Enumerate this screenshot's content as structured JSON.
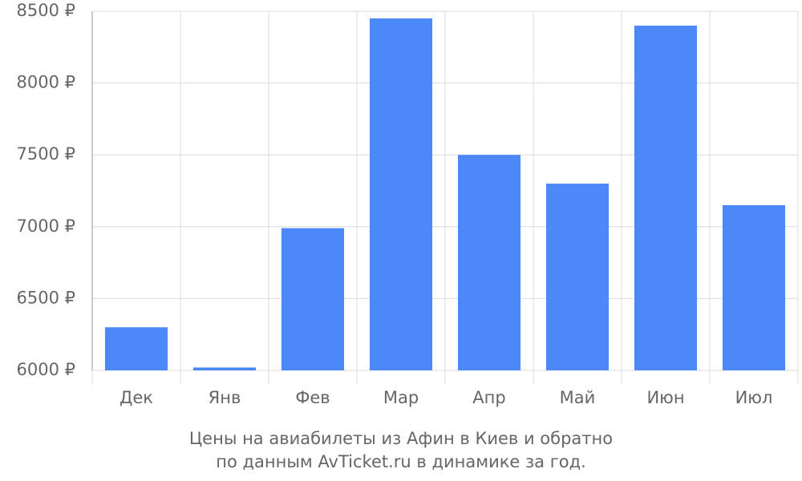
{
  "chart_data": {
    "type": "bar",
    "title": "Цены на авиабилеты из Афин в Киев и обратно",
    "subtitle": "по данным AvTicket.ru в динамике за год.",
    "categories": [
      "Дек",
      "Янв",
      "Фев",
      "Мар",
      "Апр",
      "Май",
      "Июн",
      "Июл"
    ],
    "values": [
      6300,
      6020,
      6990,
      8450,
      7500,
      7300,
      8400,
      7150
    ],
    "color": "#4d88f9",
    "ylim": [
      6000,
      8500
    ],
    "yticks": [
      {
        "value": 6000,
        "label": "6000 ₽"
      },
      {
        "value": 6500,
        "label": "6500 ₽"
      },
      {
        "value": 7000,
        "label": "7000 ₽"
      },
      {
        "value": 7500,
        "label": "7500 ₽"
      },
      {
        "value": 8000,
        "label": "8000 ₽"
      },
      {
        "value": 8500,
        "label": "8500 ₽"
      }
    ],
    "grid": true
  }
}
